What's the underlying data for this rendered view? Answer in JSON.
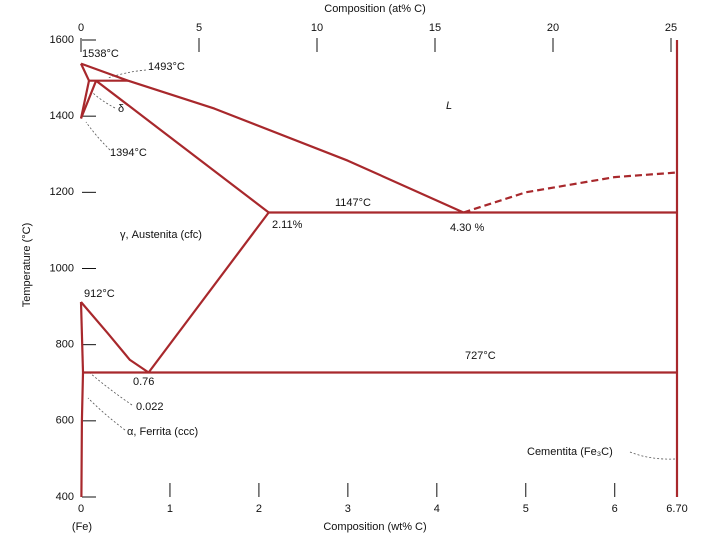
{
  "chart_data": {
    "type": "phase-diagram",
    "x_label": "Composition (wt% C)",
    "x2_label": "Composition (at% C)",
    "y_label": "Temperature (°C)",
    "x_origin_label": "(Fe)",
    "color": "#a8282c",
    "xlim": [
      0,
      6.7
    ],
    "xticks": [
      0,
      1,
      2,
      3,
      4,
      5,
      6,
      {
        "value": 6.7,
        "label": "6.70"
      }
    ],
    "x2lim": [
      0,
      25
    ],
    "x2ticks": [
      0,
      5,
      10,
      15,
      20,
      25
    ],
    "ylim": [
      400,
      1600
    ],
    "yticks": [
      400,
      600,
      800,
      1000,
      1200,
      1400,
      1600
    ],
    "lines": [
      {
        "x": [
          0,
          0.53,
          1.5,
          3,
          4.3
        ],
        "y": [
          1538,
          1493,
          1420,
          1283,
          1147
        ],
        "dashed": false
      },
      {
        "x": [
          4.3,
          5,
          6,
          6.7
        ],
        "y": [
          1147,
          1200,
          1240,
          1252
        ],
        "dashed": true
      },
      {
        "x": [
          0,
          0.09
        ],
        "y": [
          1538,
          1493
        ],
        "dashed": false
      },
      {
        "x": [
          0.09,
          0.53
        ],
        "y": [
          1493,
          1493
        ],
        "dashed": false
      },
      {
        "x": [
          0,
          0.09
        ],
        "y": [
          1394,
          1493
        ],
        "dashed": false
      },
      {
        "x": [
          0,
          0.17
        ],
        "y": [
          1394,
          1493
        ],
        "dashed": false
      },
      {
        "x": [
          0.17,
          2.11
        ],
        "y": [
          1493,
          1147
        ],
        "dashed": false
      },
      {
        "x": [
          2.11,
          6.7
        ],
        "y": [
          1147,
          1147
        ],
        "dashed": false
      },
      {
        "x": [
          0,
          0.3,
          0.55,
          0.76
        ],
        "y": [
          912,
          830,
          760,
          727
        ],
        "dashed": false
      },
      {
        "x": [
          0.76,
          2.11
        ],
        "y": [
          727,
          1147
        ],
        "dashed": false
      },
      {
        "x": [
          0.022,
          6.7
        ],
        "y": [
          727,
          727
        ],
        "dashed": false
      },
      {
        "x": [
          0,
          0.022
        ],
        "y": [
          912,
          727
        ],
        "dashed": false
      },
      {
        "x": [
          0.022,
          0.01,
          0.005
        ],
        "y": [
          727,
          600,
          400
        ],
        "dashed": false
      },
      {
        "x": [
          6.7,
          6.7
        ],
        "y": [
          400,
          1600
        ],
        "dashed": false
      }
    ],
    "annotations": [
      "1538°C",
      "1493°C",
      "δ",
      "1394°C",
      "L",
      "1147°C",
      "2.11%",
      "4.30 %",
      "γ, Austenita (cfc)",
      "912°C",
      "727°C",
      "0.76",
      "0.022",
      "α, Ferrita (ccc)",
      "Cementita (Fe₃C)"
    ]
  }
}
